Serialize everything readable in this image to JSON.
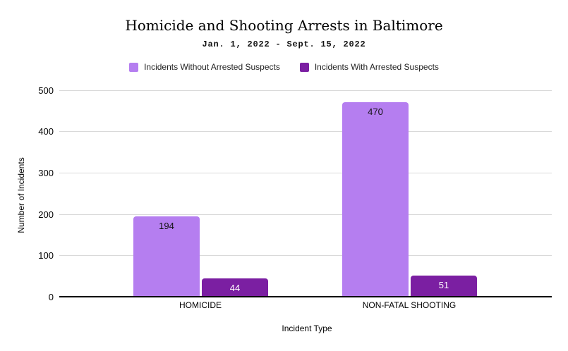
{
  "header": {
    "title": "Homicide and Shooting Arrests in Baltimore",
    "subtitle": "Jan. 1, 2022 - Sept. 15, 2022"
  },
  "colors": {
    "series_without_arrest": "#b57ef0",
    "series_with_arrest": "#7b1fa2",
    "gridline": "#d9d9d9",
    "axis_line": "#000000",
    "background": "#ffffff"
  },
  "chart_data": {
    "type": "bar",
    "title": "Homicide and Shooting Arrests in Baltimore",
    "subtitle": "Jan. 1, 2022 - Sept. 15, 2022",
    "categories": [
      "HOMICIDE",
      "NON-FATAL SHOOTING"
    ],
    "series": [
      {
        "name": "Incidents Without Arrested Suspects",
        "values": [
          194,
          470
        ],
        "color": "#b57ef0",
        "value_label_color": "#111111"
      },
      {
        "name": "Incidents With Arrested Suspects",
        "values": [
          44,
          51
        ],
        "color": "#7b1fa2",
        "value_label_color": "#ffffff"
      }
    ],
    "xlabel": "Incident Type",
    "ylabel": "Number of Incidents",
    "ylim": [
      0,
      500
    ],
    "yticks": [
      0,
      100,
      200,
      300,
      400,
      500
    ],
    "grid": true,
    "legend_position": "top"
  }
}
